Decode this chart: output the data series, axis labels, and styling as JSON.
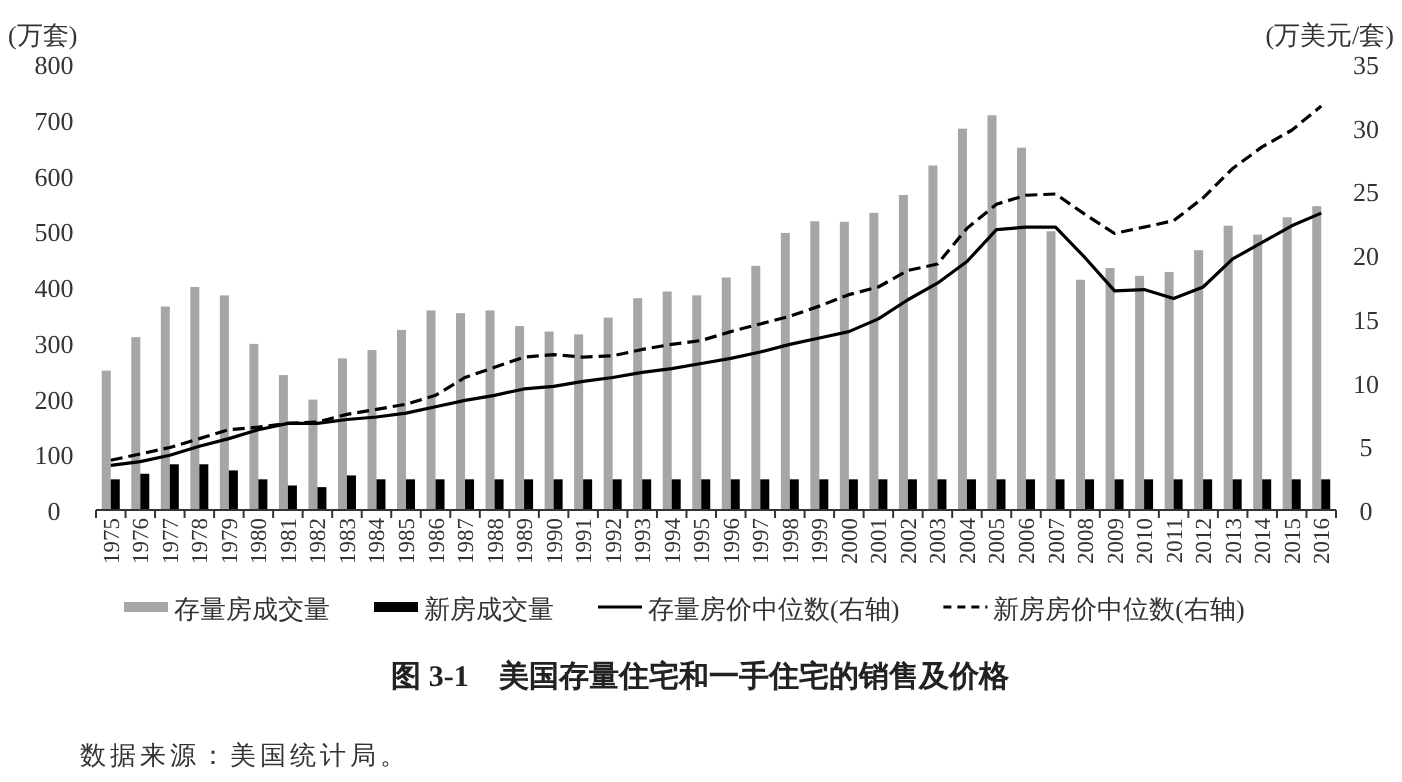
{
  "chart_data": {
    "type": "bar",
    "title": "图 3-1　美国存量住宅和一手住宅的销售及价格",
    "ylabel": "(万套)",
    "y2label": "(万美元/套)",
    "annotations": [
      "数据来源：美国统计局。"
    ],
    "categories": [
      "1975",
      "1976",
      "1977",
      "1978",
      "1979",
      "1980",
      "1981",
      "1982",
      "1983",
      "1984",
      "1985",
      "1986",
      "1987",
      "1988",
      "1989",
      "1990",
      "1991",
      "1992",
      "1993",
      "1994",
      "1995",
      "1996",
      "1997",
      "1998",
      "1999",
      "2000",
      "2001",
      "2002",
      "2003",
      "2004",
      "2005",
      "2006",
      "2007",
      "2008",
      "2009",
      "2010",
      "2011",
      "2012",
      "2013",
      "2014",
      "2015",
      "2016"
    ],
    "series": [
      {
        "name": "存量房成交量",
        "color": "#a6a6a6",
        "values": [
          250,
          310,
          365,
          400,
          385,
          298,
          242,
          198,
          272,
          287,
          323,
          358,
          353,
          358,
          330,
          320,
          315,
          345,
          380,
          392,
          385,
          417,
          438,
          497,
          518,
          517,
          533,
          565,
          618,
          684,
          708,
          650,
          500,
          413,
          434,
          420,
          427,
          466,
          510,
          494,
          525,
          545
        ]
      },
      {
        "name": "新房成交量",
        "color": "#000000",
        "values": [
          55,
          65,
          82,
          82,
          71,
          55,
          44,
          41,
          62,
          55,
          55,
          55,
          55,
          55,
          55,
          55,
          55,
          55,
          55,
          55,
          55,
          55,
          55,
          55,
          55,
          55,
          55,
          55,
          55,
          55,
          55,
          55,
          55,
          55,
          55,
          55,
          55,
          55,
          55,
          55,
          55,
          55
        ]
      },
      {
        "name": "存量房价中位数(右轴)",
        "type": "line",
        "axis": "y2",
        "color": "#000000",
        "line_style": "solid",
        "values": [
          3.5,
          3.8,
          4.3,
          5.0,
          5.6,
          6.3,
          6.8,
          6.8,
          7.1,
          7.3,
          7.6,
          8.1,
          8.6,
          9.0,
          9.5,
          9.7,
          10.1,
          10.4,
          10.8,
          11.1,
          11.5,
          11.9,
          12.4,
          13.0,
          13.5,
          14.0,
          15.0,
          16.5,
          17.8,
          19.5,
          22.0,
          22.2,
          22.2,
          19.8,
          17.2,
          17.3,
          16.6,
          17.5,
          19.7,
          21.0,
          22.3,
          23.3
        ]
      },
      {
        "name": "新房房价中位数(右轴)",
        "type": "line",
        "axis": "y2",
        "color": "#000000",
        "line_style": "dashed",
        "values": [
          3.9,
          4.4,
          4.9,
          5.6,
          6.3,
          6.5,
          6.8,
          6.9,
          7.5,
          7.9,
          8.3,
          9.0,
          10.4,
          11.2,
          12.0,
          12.2,
          12.0,
          12.1,
          12.6,
          13.0,
          13.3,
          14.0,
          14.6,
          15.2,
          16.0,
          16.9,
          17.5,
          18.8,
          19.3,
          22.1,
          24.0,
          24.7,
          24.8,
          23.2,
          21.7,
          22.2,
          22.7,
          24.5,
          26.8,
          28.5,
          29.8,
          31.7
        ]
      }
    ],
    "ylim": [
      0,
      800
    ],
    "yticks": [
      0,
      100,
      200,
      300,
      400,
      500,
      600,
      700,
      800
    ],
    "y2lim": [
      0,
      35
    ],
    "y2ticks": [
      0,
      5,
      10,
      15,
      20,
      25,
      30,
      35
    ],
    "grid": false,
    "legend": "bottom"
  }
}
